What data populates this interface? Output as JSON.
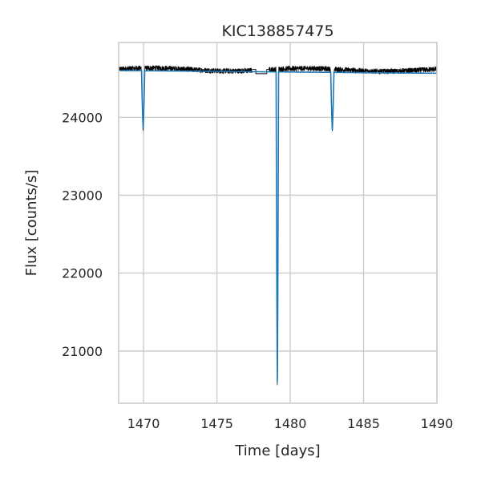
{
  "chart_data": {
    "type": "line",
    "title": "KIC138857475",
    "xlabel": "Time [days]",
    "ylabel": "Flux [counts/s]",
    "xlim": [
      1468.3,
      1490.0
    ],
    "ylim": [
      20330,
      24960
    ],
    "grid": true,
    "xticks": [
      1470,
      1475,
      1480,
      1485,
      1490
    ],
    "yticks": [
      21000,
      22000,
      23000,
      24000
    ],
    "series": [
      {
        "role": "data",
        "color": "#000000",
        "baseline": 24615,
        "noise": 35,
        "segments": [
          [
            1468.3,
            1477.4
          ],
          [
            1478.55,
            1490.0
          ]
        ],
        "gap_level": 24560,
        "eclipses": [
          {
            "time": 1469.97,
            "min": 23830,
            "width": 0.12
          },
          {
            "time": 1479.12,
            "min": 20540,
            "width": 0.09
          },
          {
            "time": 1482.87,
            "min": 23810,
            "width": 0.12
          }
        ]
      },
      {
        "role": "model",
        "color": "#1f77b4",
        "baseline": 24600,
        "end_level": 24565,
        "eclipses": [
          {
            "time": 1469.97,
            "min": 23860,
            "width": 0.11
          },
          {
            "time": 1479.12,
            "min": 20600,
            "width": 0.085
          },
          {
            "time": 1482.87,
            "min": 23840,
            "width": 0.11
          }
        ]
      }
    ]
  }
}
